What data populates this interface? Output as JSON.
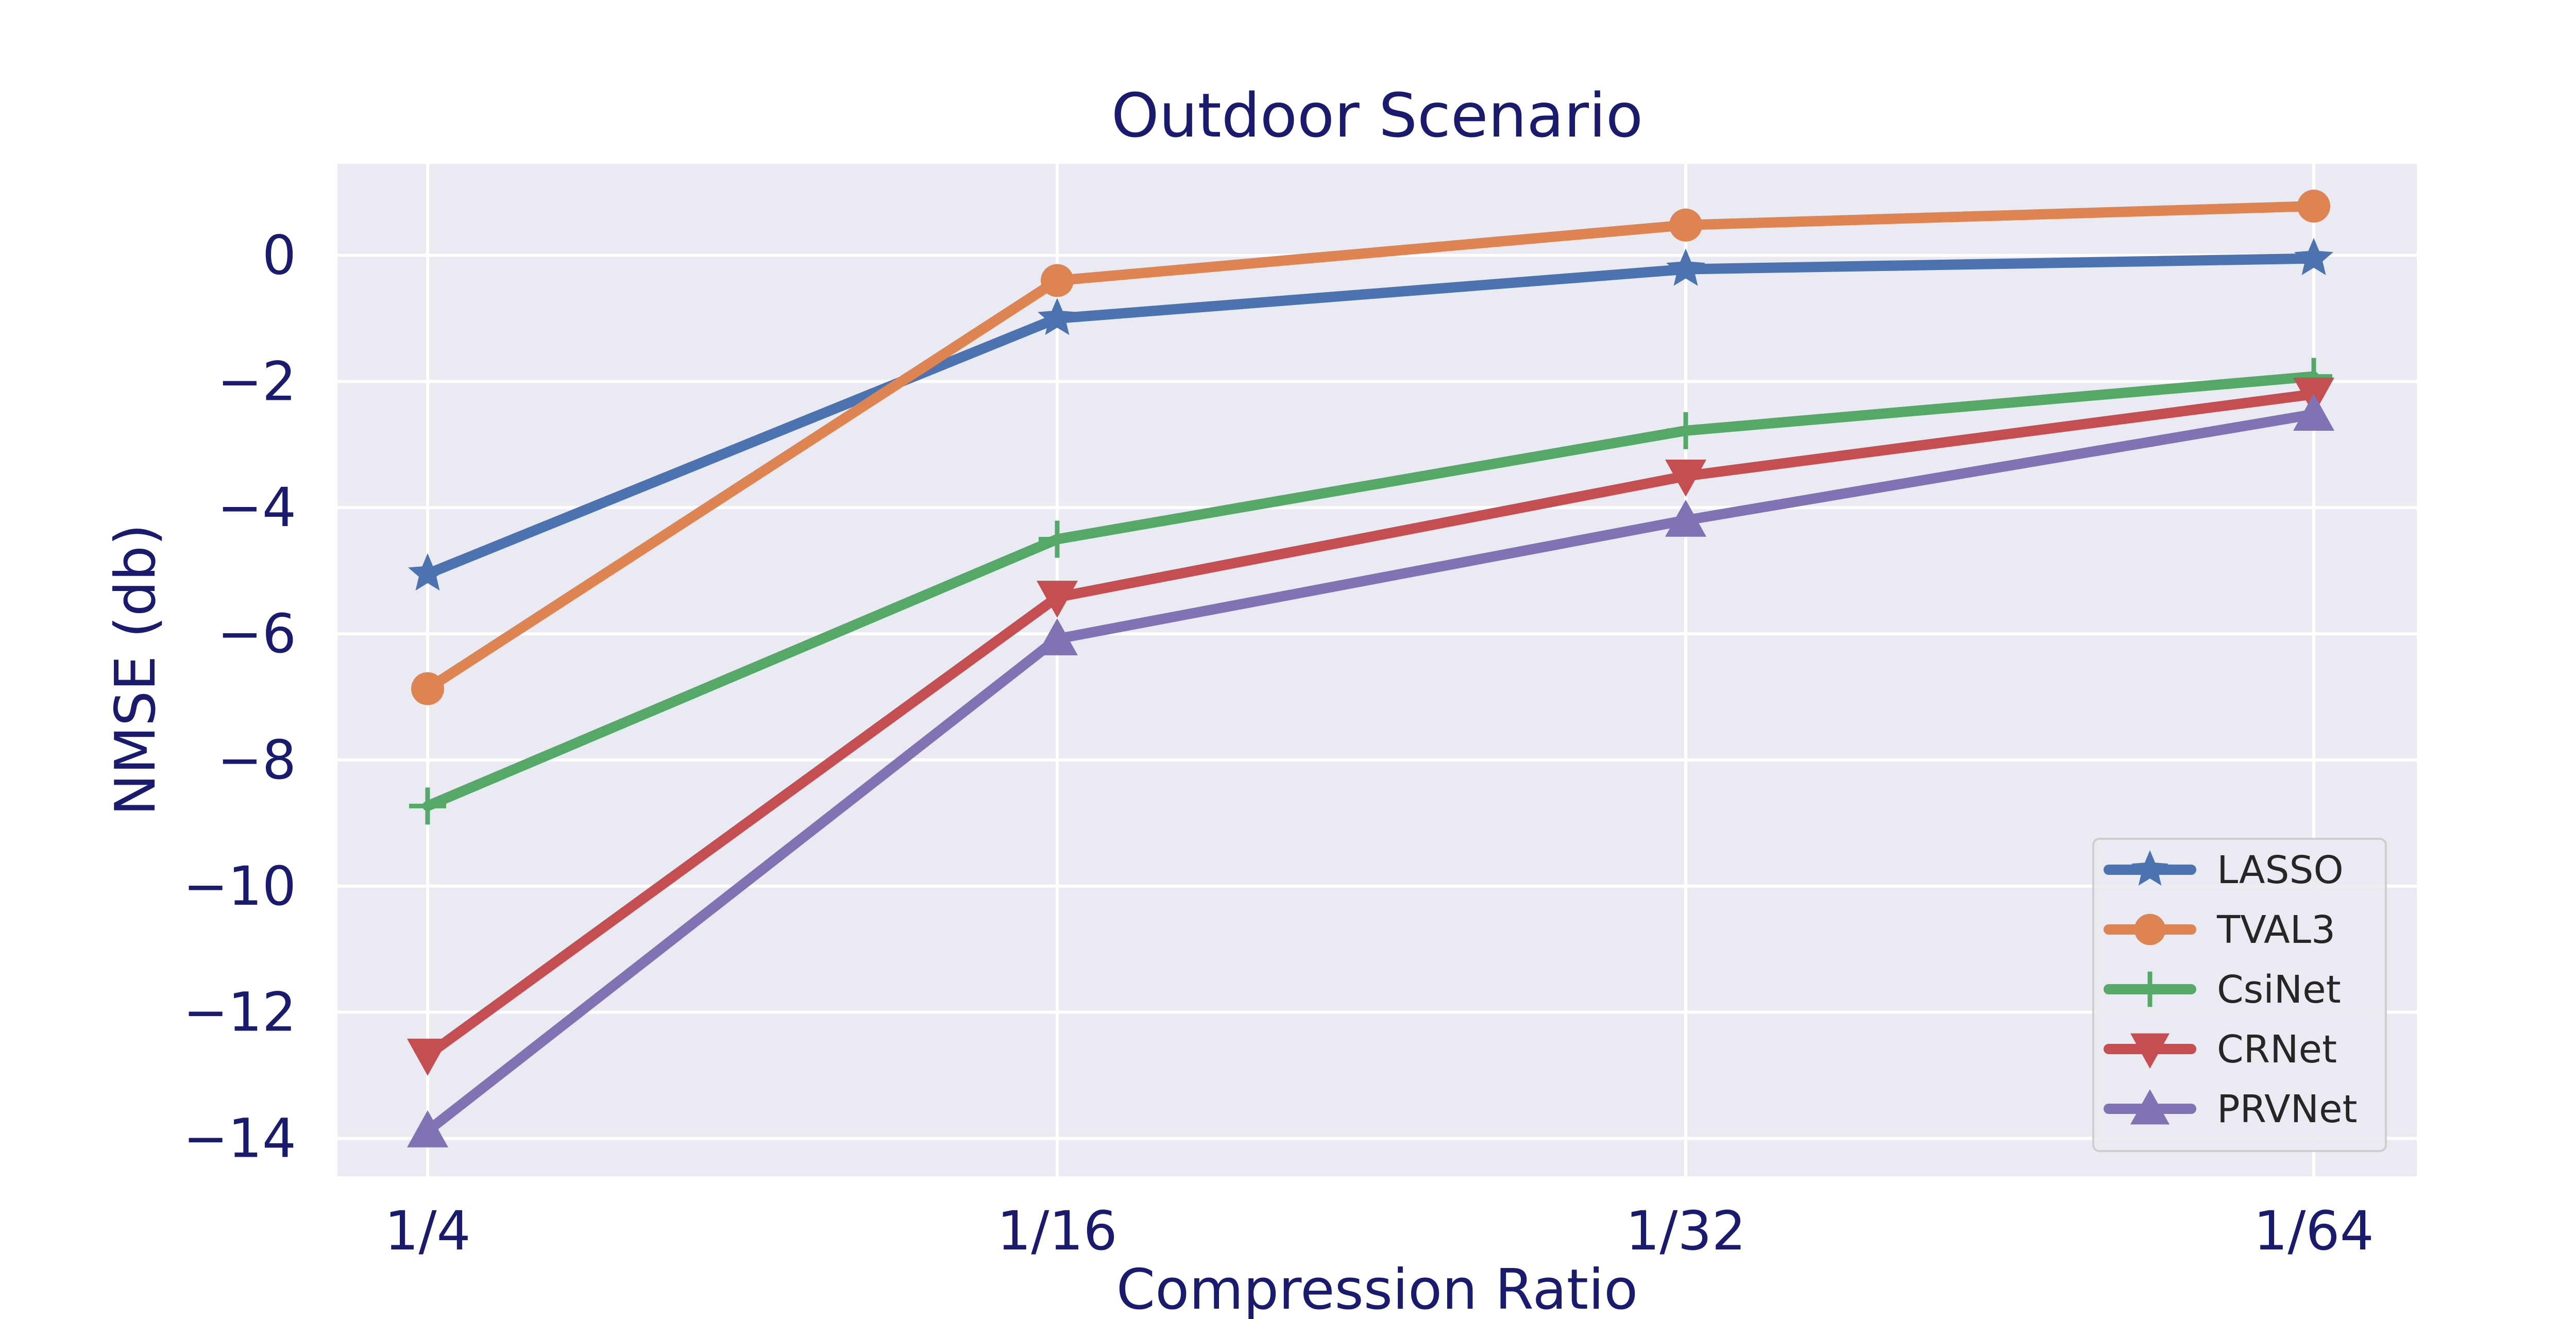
{
  "chart_data": {
    "type": "line",
    "title": "Outdoor Scenario",
    "xlabel": "Compression Ratio",
    "ylabel": "NMSE (db)",
    "categories": [
      "1/4",
      "1/16",
      "1/32",
      "1/64"
    ],
    "ylim": [
      -14.6,
      1.45
    ],
    "yticks": [
      0,
      -2,
      -4,
      -6,
      -8,
      -10,
      -12,
      -14
    ],
    "ytick_labels": [
      "0",
      "−2",
      "−4",
      "−6",
      "−8",
      "−10",
      "−12",
      "−14"
    ],
    "grid": true,
    "legend_position": "lower-right",
    "series": [
      {
        "name": "LASSO",
        "marker": "star",
        "color": "#4c72b0",
        "values": [
          -5.05,
          -1.0,
          -0.22,
          -0.05
        ]
      },
      {
        "name": "TVAL3",
        "marker": "circle",
        "color": "#dd8452",
        "values": [
          -6.87,
          -0.4,
          0.48,
          0.78
        ]
      },
      {
        "name": "CsiNet",
        "marker": "plus",
        "color": "#55a868",
        "values": [
          -8.73,
          -4.5,
          -2.78,
          -1.92
        ]
      },
      {
        "name": "CRNet",
        "marker": "triangle-down",
        "color": "#c44e52",
        "values": [
          -12.68,
          -5.42,
          -3.5,
          -2.2
        ]
      },
      {
        "name": "PRVNet",
        "marker": "triangle-up",
        "color": "#8172b3",
        "values": [
          -13.88,
          -6.08,
          -4.2,
          -2.52
        ]
      }
    ]
  }
}
